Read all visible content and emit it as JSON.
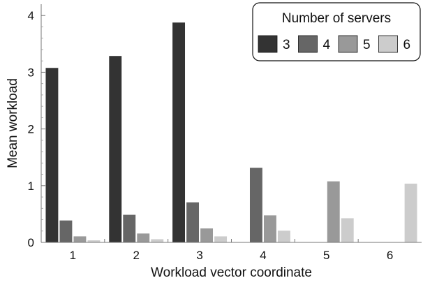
{
  "chart_data": {
    "type": "bar",
    "xlabel": "Workload vector coordinate",
    "ylabel": "Mean workload",
    "categories": [
      "1",
      "2",
      "3",
      "4",
      "5",
      "6"
    ],
    "ylim": [
      0,
      4.2
    ],
    "yticks": [
      "0",
      "1",
      "2",
      "3",
      "4"
    ],
    "legend": {
      "title": "Number of servers",
      "placement": "top-right"
    },
    "series": [
      {
        "name": "3",
        "color": "#333333",
        "values": [
          3.08,
          3.29,
          3.88,
          0,
          0,
          0
        ]
      },
      {
        "name": "4",
        "color": "#666666",
        "values": [
          0.39,
          0.49,
          0.71,
          1.32,
          0,
          0
        ]
      },
      {
        "name": "5",
        "color": "#999999",
        "values": [
          0.11,
          0.16,
          0.25,
          0.48,
          1.08,
          0
        ]
      },
      {
        "name": "6",
        "color": "#cccccc",
        "values": [
          0.04,
          0.06,
          0.11,
          0.21,
          0.43,
          1.04
        ]
      }
    ],
    "grid": false
  }
}
